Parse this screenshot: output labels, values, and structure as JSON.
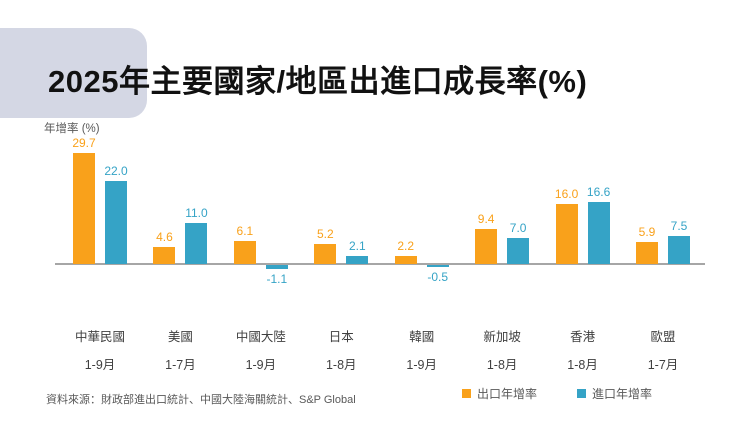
{
  "page": {
    "title": "2025年主要國家/地區出進口成長率(%)"
  },
  "chart_data": {
    "type": "bar",
    "title": "2025年主要國家/地區出進口成長率(%)",
    "ylabel": "年增率 (%)",
    "xlabel": "",
    "ylim": [
      -3,
      32
    ],
    "grid": false,
    "legend_position": "bottom-right",
    "categories": [
      {
        "name": "中華民國",
        "period": "1-9月"
      },
      {
        "name": "美國",
        "period": "1-7月"
      },
      {
        "name": "中國大陸",
        "period": "1-9月"
      },
      {
        "name": "日本",
        "period": "1-8月"
      },
      {
        "name": "韓國",
        "period": "1-9月"
      },
      {
        "name": "新加坡",
        "period": "1-8月"
      },
      {
        "name": "香港",
        "period": "1-8月"
      },
      {
        "name": "歐盟",
        "period": "1-7月"
      }
    ],
    "series": [
      {
        "name": "出口年增率",
        "color": "#F9A11B",
        "values": [
          29.7,
          4.6,
          6.1,
          5.2,
          2.2,
          9.4,
          16.0,
          5.9
        ]
      },
      {
        "name": "進口年增率",
        "color": "#35A3C6",
        "values": [
          22.0,
          11.0,
          -1.1,
          2.1,
          -0.5,
          7.0,
          16.6,
          7.5
        ]
      }
    ]
  },
  "legend": {
    "items": [
      {
        "label": "出口年增率",
        "color": "#F9A11B"
      },
      {
        "label": "進口年增率",
        "color": "#35A3C6"
      }
    ]
  },
  "footer": {
    "source": "資料來源：財政部進出口統計、中國大陸海關統計、S&P Global"
  },
  "colors": {
    "export_bar": "#F9A11B",
    "import_bar": "#35A3C6",
    "title_badge": "#D4D7E4",
    "axis_line": "#A6A6A6",
    "text_muted": "#595959"
  }
}
